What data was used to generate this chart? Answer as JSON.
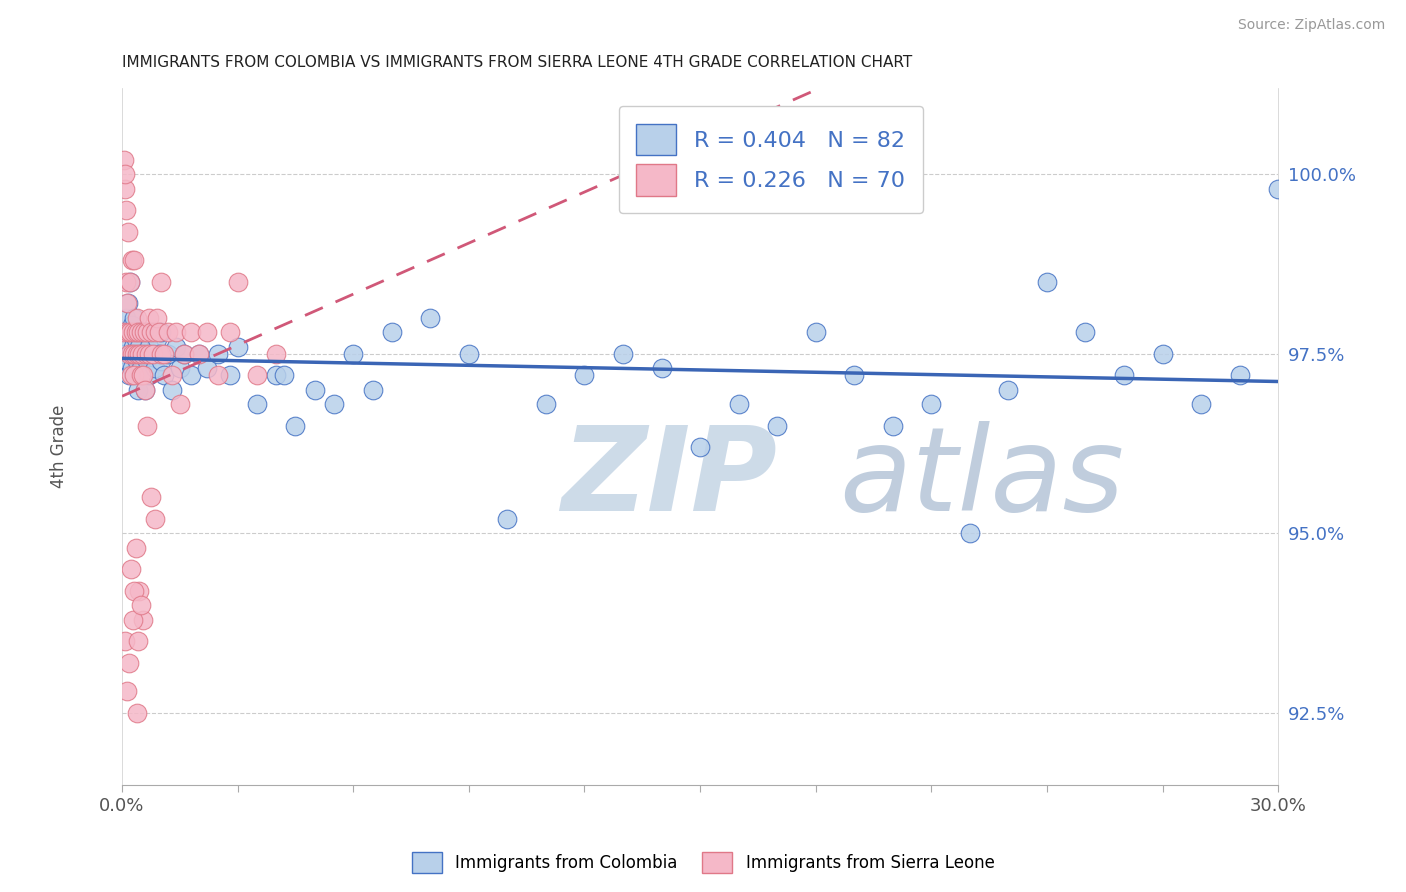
{
  "title": "IMMIGRANTS FROM COLOMBIA VS IMMIGRANTS FROM SIERRA LEONE 4TH GRADE CORRELATION CHART",
  "source": "Source: ZipAtlas.com",
  "ylabel": "4th Grade",
  "y_ticks": [
    92.5,
    95.0,
    97.5,
    100.0
  ],
  "y_tick_labels": [
    "92.5%",
    "95.0%",
    "97.5%",
    "100.0%"
  ],
  "x_min": 0.0,
  "x_max": 30.0,
  "y_min": 91.5,
  "y_max": 101.2,
  "legend_r1": "R = 0.404",
  "legend_n1": "N = 82",
  "legend_r2": "R = 0.226",
  "legend_n2": "N = 70",
  "color_colombia_fill": "#b8d0ea",
  "color_sierra_fill": "#f5b8c8",
  "color_colombia_edge": "#4472c4",
  "color_sierra_edge": "#e07888",
  "color_colombia_line": "#3a65b5",
  "color_sierra_line": "#d05878",
  "watermark_zi": "#c8d8ee",
  "watermark_atlas": "#c0c8d8",
  "legend_label1": "Immigrants from Colombia",
  "legend_label2": "Immigrants from Sierra Leone",
  "colombia_x": [
    0.05,
    0.08,
    0.1,
    0.12,
    0.15,
    0.15,
    0.18,
    0.2,
    0.2,
    0.22,
    0.25,
    0.25,
    0.28,
    0.3,
    0.3,
    0.32,
    0.35,
    0.38,
    0.4,
    0.42,
    0.45,
    0.48,
    0.5,
    0.52,
    0.55,
    0.58,
    0.6,
    0.62,
    0.65,
    0.7,
    0.7,
    0.75,
    0.8,
    0.85,
    0.9,
    0.95,
    1.0,
    1.0,
    1.1,
    1.2,
    1.3,
    1.4,
    1.5,
    1.6,
    1.8,
    2.0,
    2.2,
    2.5,
    2.8,
    3.0,
    3.5,
    4.0,
    4.5,
    5.0,
    5.5,
    6.0,
    7.0,
    8.0,
    9.0,
    10.0,
    11.0,
    12.0,
    13.0,
    14.0,
    15.0,
    17.0,
    18.0,
    20.0,
    22.0,
    24.0,
    25.0,
    26.0,
    27.0,
    28.0,
    29.0,
    30.0,
    6.5,
    16.0,
    19.0,
    23.0,
    21.0,
    4.2
  ],
  "colombia_y": [
    97.5,
    97.8,
    98.0,
    97.6,
    97.4,
    98.2,
    97.2,
    97.5,
    98.5,
    97.8,
    97.3,
    97.9,
    97.6,
    97.2,
    98.0,
    97.5,
    97.7,
    97.4,
    97.8,
    97.0,
    97.6,
    97.3,
    97.5,
    97.8,
    97.2,
    97.5,
    97.0,
    97.8,
    97.4,
    97.6,
    97.2,
    97.8,
    97.5,
    97.3,
    97.7,
    97.5,
    97.4,
    97.8,
    97.2,
    97.5,
    97.0,
    97.6,
    97.3,
    97.5,
    97.2,
    97.5,
    97.3,
    97.5,
    97.2,
    97.6,
    96.8,
    97.2,
    96.5,
    97.0,
    96.8,
    97.5,
    97.8,
    98.0,
    97.5,
    95.2,
    96.8,
    97.2,
    97.5,
    97.3,
    96.2,
    96.5,
    97.8,
    96.5,
    95.0,
    98.5,
    97.8,
    97.2,
    97.5,
    96.8,
    97.2,
    99.8,
    97.0,
    96.8,
    97.2,
    97.0,
    96.8,
    97.2
  ],
  "sierra_x": [
    0.03,
    0.05,
    0.07,
    0.08,
    0.1,
    0.1,
    0.12,
    0.15,
    0.15,
    0.18,
    0.2,
    0.2,
    0.22,
    0.25,
    0.25,
    0.28,
    0.3,
    0.3,
    0.32,
    0.35,
    0.38,
    0.4,
    0.42,
    0.45,
    0.48,
    0.5,
    0.52,
    0.55,
    0.58,
    0.6,
    0.62,
    0.65,
    0.7,
    0.7,
    0.75,
    0.8,
    0.85,
    0.9,
    0.95,
    1.0,
    1.0,
    1.1,
    1.2,
    1.3,
    1.4,
    1.5,
    1.6,
    1.8,
    2.0,
    2.2,
    2.5,
    2.8,
    3.0,
    3.5,
    4.0,
    0.35,
    0.45,
    0.55,
    0.65,
    0.75,
    0.85,
    0.08,
    0.12,
    0.18,
    0.22,
    0.28,
    0.32,
    0.38,
    0.42,
    0.48
  ],
  "sierra_y": [
    97.8,
    100.2,
    99.8,
    100.0,
    99.5,
    98.5,
    98.2,
    97.8,
    99.2,
    97.5,
    98.5,
    97.8,
    97.2,
    97.5,
    98.8,
    97.8,
    98.8,
    97.2,
    97.5,
    97.8,
    97.5,
    98.0,
    97.8,
    97.5,
    97.2,
    97.8,
    97.5,
    97.2,
    97.8,
    97.0,
    97.5,
    97.8,
    97.5,
    98.0,
    97.8,
    97.5,
    97.8,
    98.0,
    97.8,
    97.5,
    98.5,
    97.5,
    97.8,
    97.2,
    97.8,
    96.8,
    97.5,
    97.8,
    97.5,
    97.8,
    97.2,
    97.8,
    98.5,
    97.2,
    97.5,
    94.8,
    94.2,
    93.8,
    96.5,
    95.5,
    95.2,
    93.5,
    92.8,
    93.2,
    94.5,
    93.8,
    94.2,
    92.5,
    93.5,
    94.0
  ],
  "x_ticks": [
    0,
    3,
    6,
    9,
    12,
    15,
    18,
    21,
    24,
    27,
    30
  ]
}
